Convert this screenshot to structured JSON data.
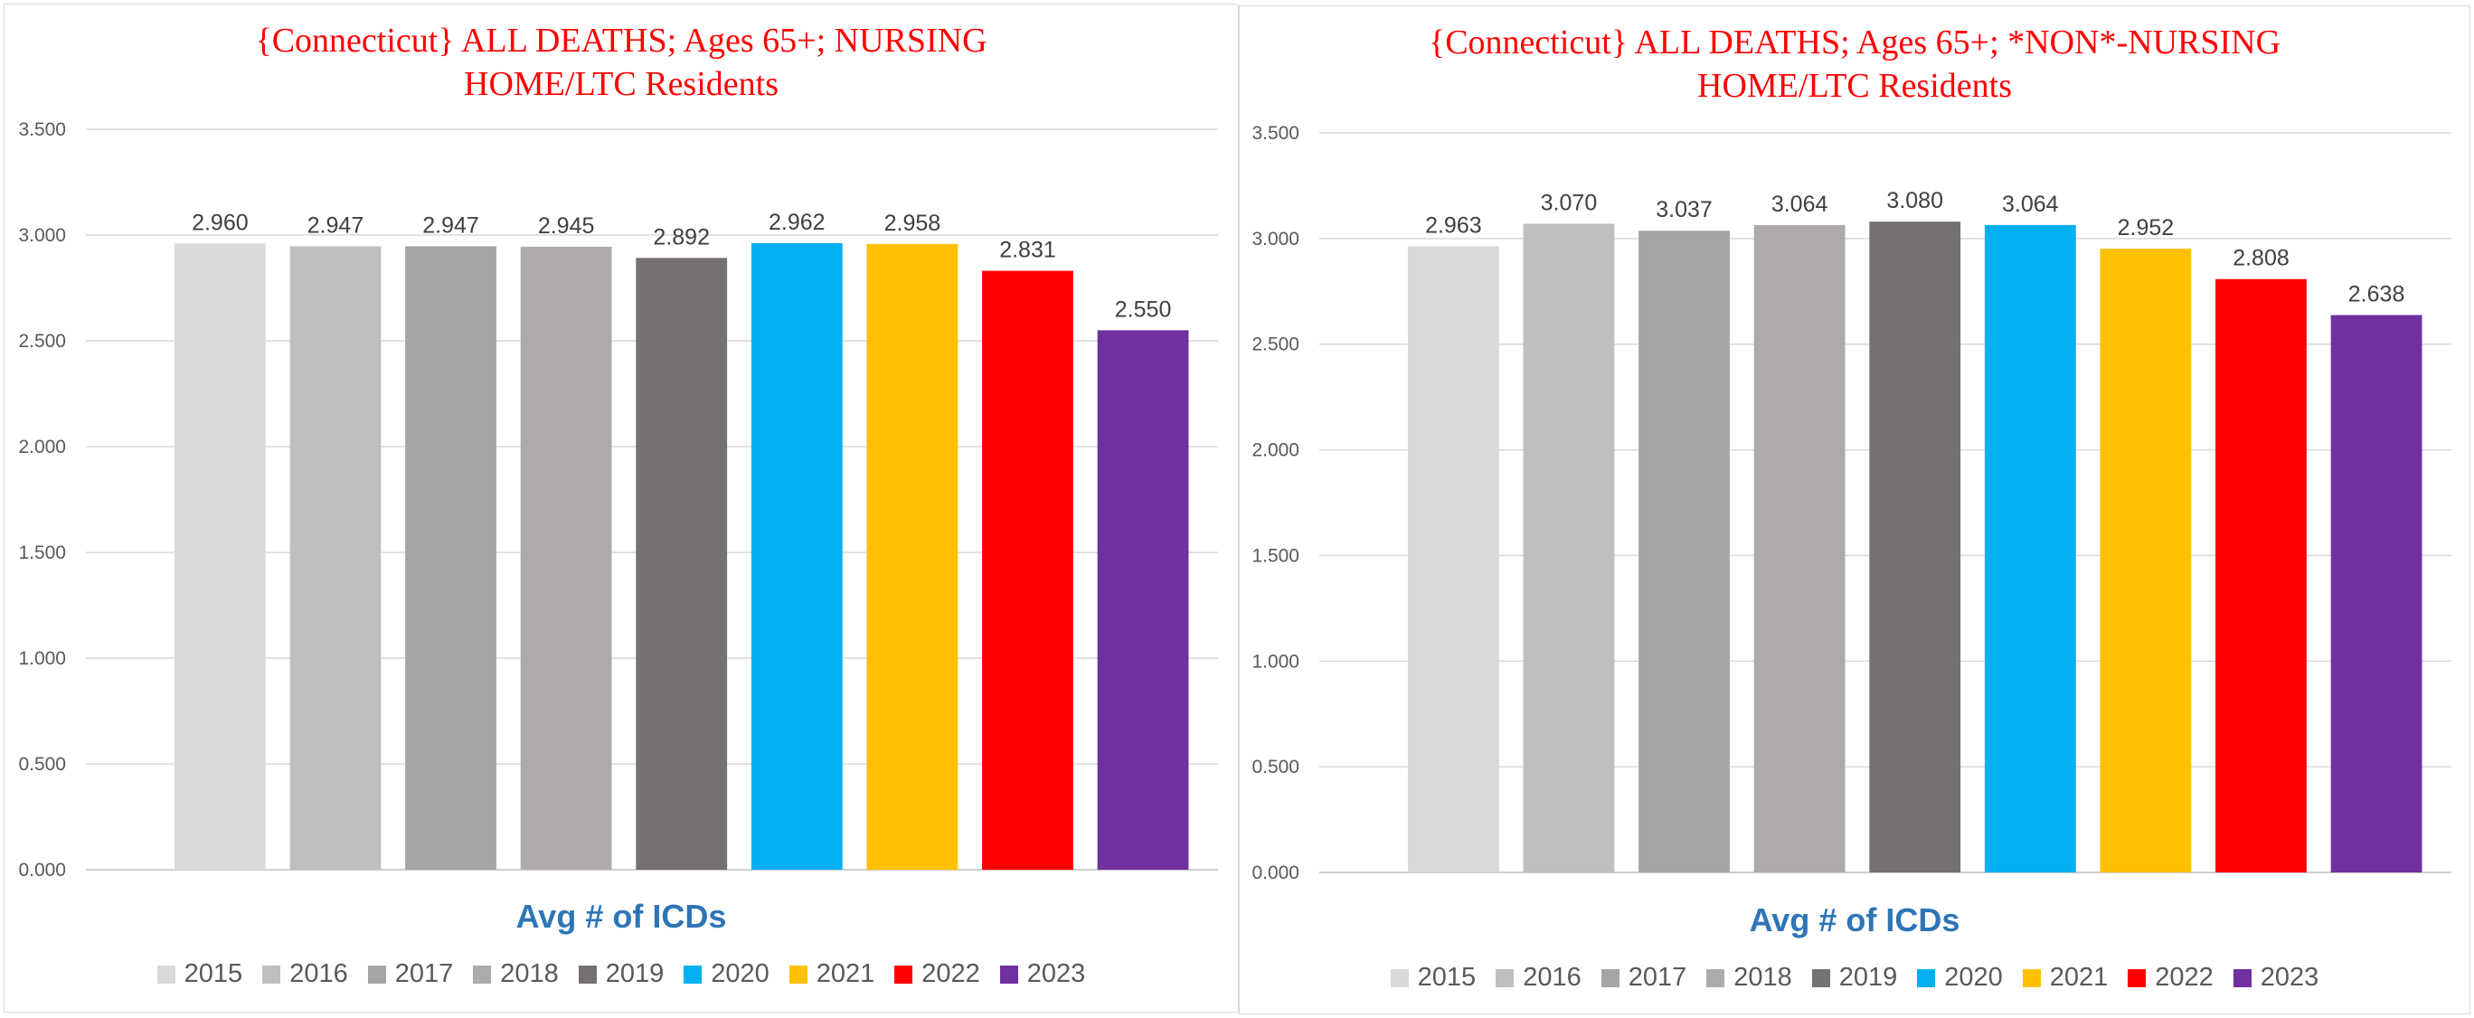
{
  "chart_data": [
    {
      "type": "bar",
      "title_lines": [
        "{Connecticut}  ALL DEATHS; Ages 65+; NURSING",
        "HOME/LTC Residents"
      ],
      "xlabel": "Avg # of ICDs",
      "ylabel": "",
      "ylim": [
        0,
        3.5
      ],
      "yticks": [
        "0.000",
        "0.500",
        "1.000",
        "1.500",
        "2.000",
        "2.500",
        "3.000",
        "3.500"
      ],
      "grid": true,
      "legend_position": "bottom",
      "series": [
        {
          "name": "2015",
          "value": 2.96,
          "label": "2.960",
          "color": "#d9d9d9"
        },
        {
          "name": "2016",
          "value": 2.947,
          "label": "2.947",
          "color": "#bfbfbf"
        },
        {
          "name": "2017",
          "value": 2.947,
          "label": "2.947",
          "color": "#a5a5a5"
        },
        {
          "name": "2018",
          "value": 2.945,
          "label": "2.945",
          "color": "#aeaaaa"
        },
        {
          "name": "2019",
          "value": 2.892,
          "label": "2.892",
          "color": "#767171"
        },
        {
          "name": "2020",
          "value": 2.962,
          "label": "2.962",
          "color": "#00b0f0"
        },
        {
          "name": "2021",
          "value": 2.958,
          "label": "2.958",
          "color": "#ffc000"
        },
        {
          "name": "2022",
          "value": 2.831,
          "label": "2.831",
          "color": "#ff0000"
        },
        {
          "name": "2023",
          "value": 2.55,
          "label": "2.550",
          "color": "#7030a0"
        }
      ]
    },
    {
      "type": "bar",
      "title_lines": [
        "{Connecticut}  ALL DEATHS; Ages 65+; *NON*-NURSING",
        "HOME/LTC Residents"
      ],
      "xlabel": "Avg # of ICDs",
      "ylabel": "",
      "ylim": [
        0,
        3.5
      ],
      "yticks": [
        "0.000",
        "0.500",
        "1.000",
        "1.500",
        "2.000",
        "2.500",
        "3.000",
        "3.500"
      ],
      "grid": true,
      "legend_position": "bottom",
      "series": [
        {
          "name": "2015",
          "value": 2.963,
          "label": "2.963",
          "color": "#d9d9d9"
        },
        {
          "name": "2016",
          "value": 3.07,
          "label": "3.070",
          "color": "#bfbfbf"
        },
        {
          "name": "2017",
          "value": 3.037,
          "label": "3.037",
          "color": "#a5a5a5"
        },
        {
          "name": "2018",
          "value": 3.064,
          "label": "3.064",
          "color": "#aeaaaa"
        },
        {
          "name": "2019",
          "value": 3.08,
          "label": "3.080",
          "color": "#767171"
        },
        {
          "name": "2020",
          "value": 3.064,
          "label": "3.064",
          "color": "#00b0f0"
        },
        {
          "name": "2021",
          "value": 2.952,
          "label": "2.952",
          "color": "#ffc000"
        },
        {
          "name": "2022",
          "value": 2.808,
          "label": "2.808",
          "color": "#ff0000"
        },
        {
          "name": "2023",
          "value": 2.638,
          "label": "2.638",
          "color": "#7030a0"
        }
      ]
    }
  ]
}
